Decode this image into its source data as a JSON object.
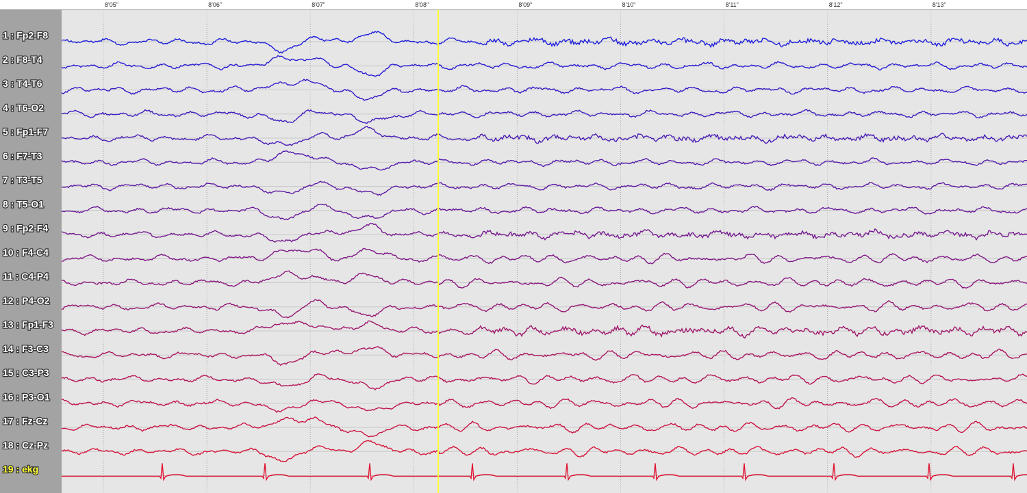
{
  "time_axis": {
    "labels": [
      "8'05\"",
      "8'06\"",
      "8'07\"",
      "8'08\"",
      "8'09\"",
      "8'10\"",
      "8'11\"",
      "8'12\"",
      "8'13\""
    ]
  },
  "channels": [
    "1 : Fp2-F8",
    "2 : F8-T4",
    "3 : T4-T6",
    "4 : T6-O2",
    "5 : Fp1-F7",
    "6 : F7-T3",
    "7 : T3-T5",
    "8 : T5-O1",
    "9 : Fp2-F4",
    "10 : F4-C4",
    "11 : C4-P4",
    "12 : P4-O2",
    "13 : Fp1-F3",
    "14 : F3-C3",
    "15 : C3-P3",
    "16 : P3-O1",
    "17 : Fz-Cz",
    "18 : Cz-Pz",
    "19 : ekg"
  ]
}
